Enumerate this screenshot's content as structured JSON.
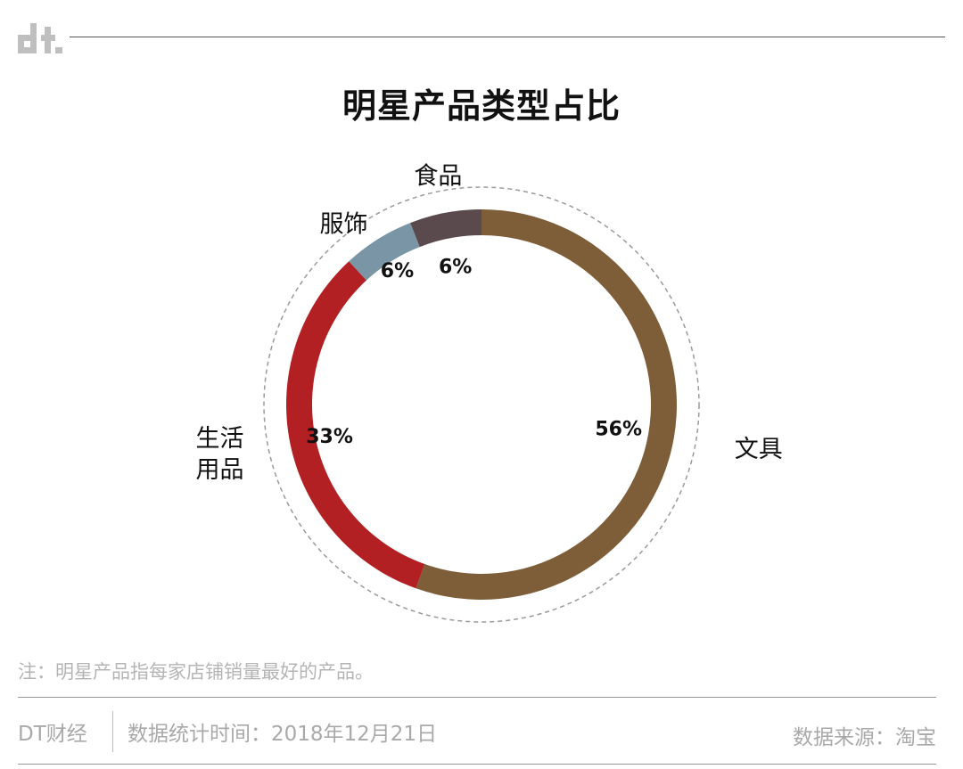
{
  "header": {
    "logo_text": "dt"
  },
  "chart_data": {
    "type": "pie",
    "title": "明星产品类型占比",
    "slices": [
      {
        "label": "文具",
        "value": 56,
        "value_label": "56%",
        "color": "#7e5e39"
      },
      {
        "label": "生活用品",
        "label_lines": [
          "生活",
          "用品"
        ],
        "value": 33,
        "value_label": "33%",
        "color": "#b22024"
      },
      {
        "label": "服饰",
        "value": 6,
        "value_label": "6%",
        "color": "#7a96a6"
      },
      {
        "label": "食品",
        "value": 6,
        "value_label": "6%",
        "color": "#5a4a4e"
      }
    ]
  },
  "note": "注：明星产品指每家店铺销量最好的产品。",
  "footer": {
    "brand": "DT财经",
    "date": "数据统计时间：2018年12月21日",
    "source": "数据来源：淘宝"
  }
}
